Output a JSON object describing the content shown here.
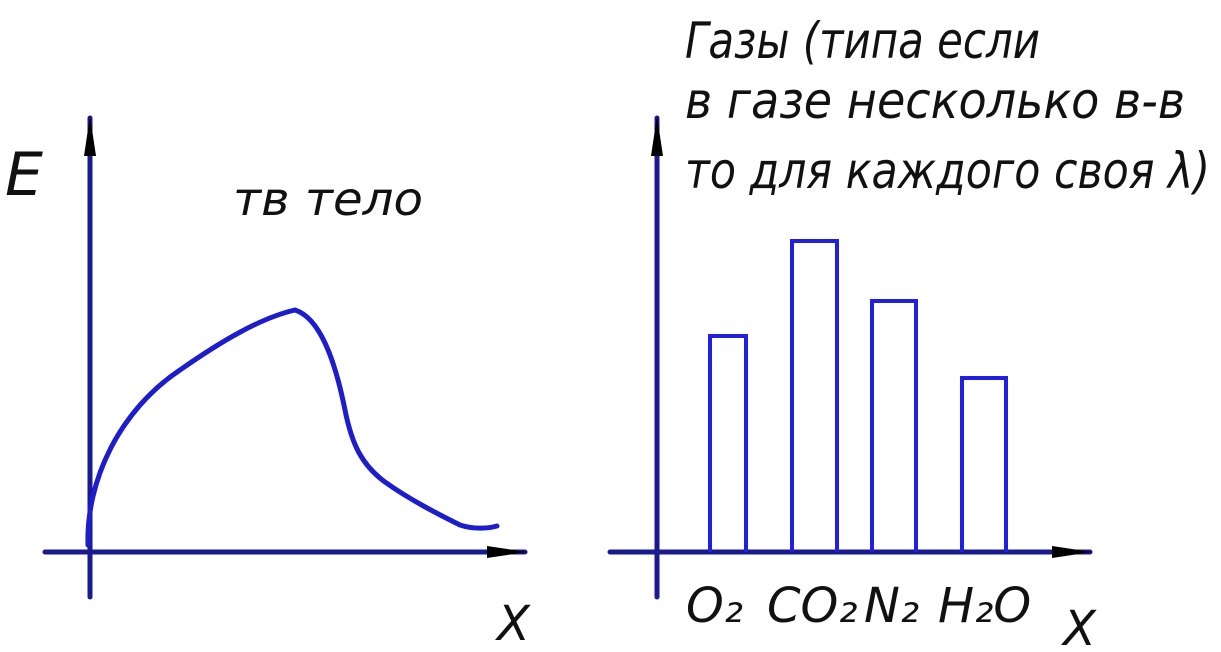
{
  "left_panel": {
    "y_axis_label": "E",
    "x_axis_label": "X",
    "curve_label": "тв тело"
  },
  "right_panel": {
    "heading": [
      "Газы (типа если",
      "в газе несколько в-в",
      "то для каждого своя λ)"
    ],
    "x_axis_label": "X",
    "bar_labels": [
      "O₂",
      "CO₂",
      "N₂",
      "H₂O"
    ]
  }
}
